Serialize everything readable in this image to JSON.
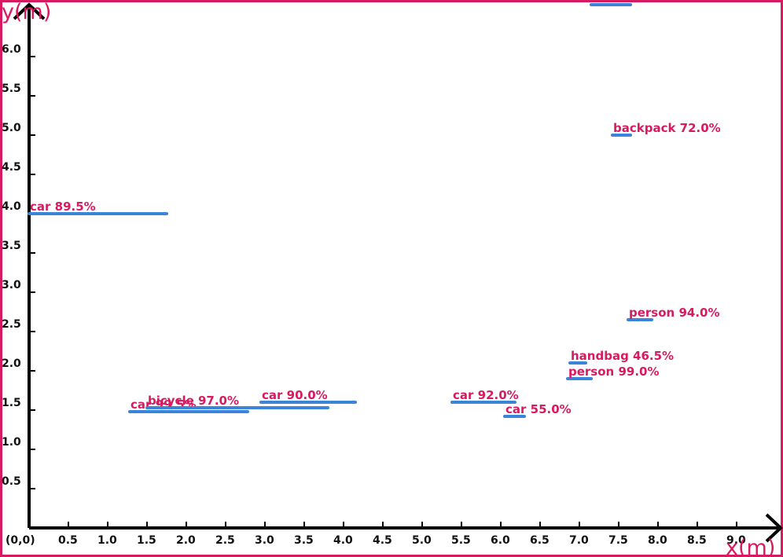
{
  "chart_data": {
    "type": "scatter",
    "title": "",
    "xlabel": "x(m)",
    "ylabel": "y(m)",
    "origin_label": "(0,0)",
    "xlim": [
      0,
      9.5
    ],
    "ylim": [
      0,
      6.7
    ],
    "x_ticks": [
      "0.5",
      "1.0",
      "1.5",
      "2.0",
      "2.5",
      "3.0",
      "3.5",
      "4.0",
      "4.5",
      "5.0",
      "5.5",
      "6.0",
      "6.5",
      "7.0",
      "7.5",
      "8.0",
      "8.5",
      "9.0"
    ],
    "y_ticks": [
      "0.5",
      "1.0",
      "1.5",
      "2.0",
      "2.5",
      "3.0",
      "3.5",
      "4.0",
      "4.5",
      "5.0",
      "5.5",
      "6.0"
    ],
    "grid": false,
    "colors": {
      "axis": "#000000",
      "frame": "#d81b60",
      "segment": "#3b84d9",
      "label": "#d81b60"
    },
    "detections": [
      {
        "label": "car 89.5%",
        "x1": 0.0,
        "x2": 1.75,
        "y": 4.0
      },
      {
        "label": "car 99.5%",
        "x1": 1.28,
        "x2": 2.78,
        "y": 1.48
      },
      {
        "label": "bicycle 97.0%",
        "x1": 1.5,
        "x2": 3.8,
        "y": 1.53
      },
      {
        "label": "car 90.0%",
        "x1": 2.95,
        "x2": 4.15,
        "y": 1.6
      },
      {
        "label": "car 92.0%",
        "x1": 5.38,
        "x2": 6.18,
        "y": 1.6
      },
      {
        "label": "car 55.0%",
        "x1": 6.05,
        "x2": 6.3,
        "y": 1.42
      },
      {
        "label": "person 99.0%",
        "x1": 6.85,
        "x2": 7.15,
        "y": 1.9
      },
      {
        "label": "handbag 46.5%",
        "x1": 6.88,
        "x2": 7.08,
        "y": 2.1
      },
      {
        "label": "person 94.0%",
        "x1": 7.62,
        "x2": 7.92,
        "y": 2.65
      },
      {
        "label": "backpack 72.0%",
        "x1": 7.42,
        "x2": 7.65,
        "y": 5.0
      },
      {
        "label": "",
        "x1": 7.15,
        "x2": 7.65,
        "y": 6.66
      }
    ]
  }
}
